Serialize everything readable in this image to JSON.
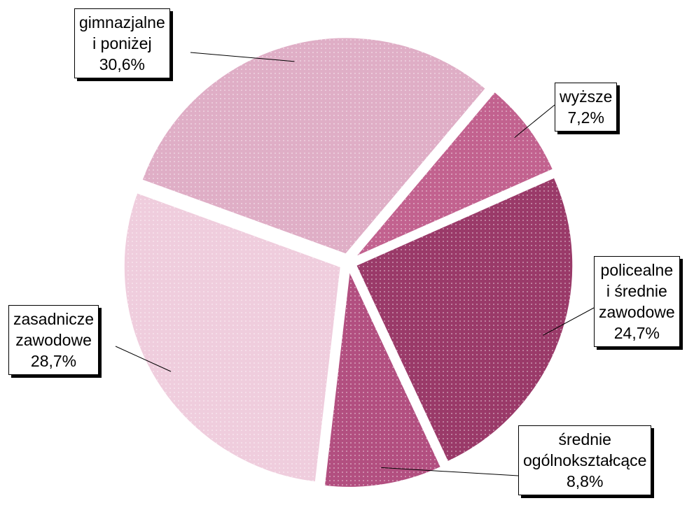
{
  "chart_data": {
    "type": "pie",
    "categories": [
      "gimnazjalne\ni poniżej",
      "wyższe",
      "policealne\ni średnie\nzawodowe",
      "średnie\nogólnokształcące",
      "zasadnicze\nzawodowe"
    ],
    "values": [
      30.6,
      7.2,
      24.7,
      8.8,
      28.7
    ],
    "value_labels": [
      "30,6%",
      "7,2%",
      "24,7%",
      "8,8%",
      "28,7%"
    ],
    "colors": [
      "#dfaec6",
      "#c2628f",
      "#9a3a69",
      "#b24f80",
      "#efcddd"
    ]
  }
}
